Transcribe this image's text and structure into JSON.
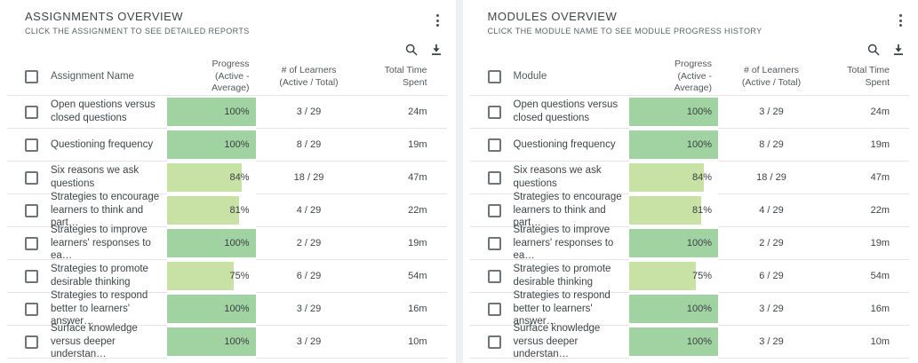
{
  "colors": {
    "bar_complete": "#a1d3a2",
    "bar_partial": "#c8e2a6",
    "page_background": "#eef1f2",
    "divider": "#e4e4e4",
    "icon": "#3a3f44"
  },
  "icons": {
    "panel_menu": "kebab-menu-icon",
    "search": "search-icon",
    "download": "download-icon"
  },
  "panels": [
    {
      "title": "ASSIGNMENTS OVERVIEW",
      "subtitle": "CLICK THE ASSIGNMENT TO SEE DETAILED REPORTS",
      "columns": {
        "name": "Assignment Name",
        "progress": "Progress (Active - Average)",
        "learners": "# of Learners (Active / Total)",
        "time": "Total Time Spent"
      },
      "rows": [
        {
          "name": "Open questions versus closed questions",
          "progress_pct": 100,
          "progress_label": "100%",
          "learners": "3 / 29",
          "time": "24m"
        },
        {
          "name": "Questioning frequency",
          "progress_pct": 100,
          "progress_label": "100%",
          "learners": "8 / 29",
          "time": "19m"
        },
        {
          "name": "Six reasons we ask questions",
          "progress_pct": 84,
          "progress_label": "84%",
          "learners": "18 / 29",
          "time": "47m"
        },
        {
          "name": "Strategies to encourage learners to think and part…",
          "progress_pct": 81,
          "progress_label": "81%",
          "learners": "4 / 29",
          "time": "22m"
        },
        {
          "name": "Strategies to improve learners' responses to ea…",
          "progress_pct": 100,
          "progress_label": "100%",
          "learners": "2 / 29",
          "time": "19m"
        },
        {
          "name": "Strategies to promote desirable thinking",
          "progress_pct": 75,
          "progress_label": "75%",
          "learners": "6 / 29",
          "time": "54m"
        },
        {
          "name": "Strategies to respond better to learners' answer…",
          "progress_pct": 100,
          "progress_label": "100%",
          "learners": "3 / 29",
          "time": "16m"
        },
        {
          "name": "Surface knowledge versus deeper understan…",
          "progress_pct": 100,
          "progress_label": "100%",
          "learners": "3 / 29",
          "time": "10m"
        }
      ]
    },
    {
      "title": "MODULES OVERVIEW",
      "subtitle": "CLICK THE MODULE NAME TO SEE MODULE PROGRESS HISTORY",
      "columns": {
        "name": "Module",
        "progress": "Progress (Active - Average)",
        "learners": "# of Learners (Active / Total)",
        "time": "Total Time Spent"
      },
      "rows": [
        {
          "name": "Open questions versus closed questions",
          "progress_pct": 100,
          "progress_label": "100%",
          "learners": "3 / 29",
          "time": "24m"
        },
        {
          "name": "Questioning frequency",
          "progress_pct": 100,
          "progress_label": "100%",
          "learners": "8 / 29",
          "time": "19m"
        },
        {
          "name": "Six reasons we ask questions",
          "progress_pct": 84,
          "progress_label": "84%",
          "learners": "18 / 29",
          "time": "47m"
        },
        {
          "name": "Strategies to encourage learners to think and part…",
          "progress_pct": 81,
          "progress_label": "81%",
          "learners": "4 / 29",
          "time": "22m"
        },
        {
          "name": "Strategies to improve learners' responses to ea…",
          "progress_pct": 100,
          "progress_label": "100%",
          "learners": "2 / 29",
          "time": "19m"
        },
        {
          "name": "Strategies to promote desirable thinking",
          "progress_pct": 75,
          "progress_label": "75%",
          "learners": "6 / 29",
          "time": "54m"
        },
        {
          "name": "Strategies to respond better to learners' answer…",
          "progress_pct": 100,
          "progress_label": "100%",
          "learners": "3 / 29",
          "time": "16m"
        },
        {
          "name": "Surface knowledge versus deeper understan…",
          "progress_pct": 100,
          "progress_label": "100%",
          "learners": "3 / 29",
          "time": "10m"
        }
      ]
    }
  ]
}
